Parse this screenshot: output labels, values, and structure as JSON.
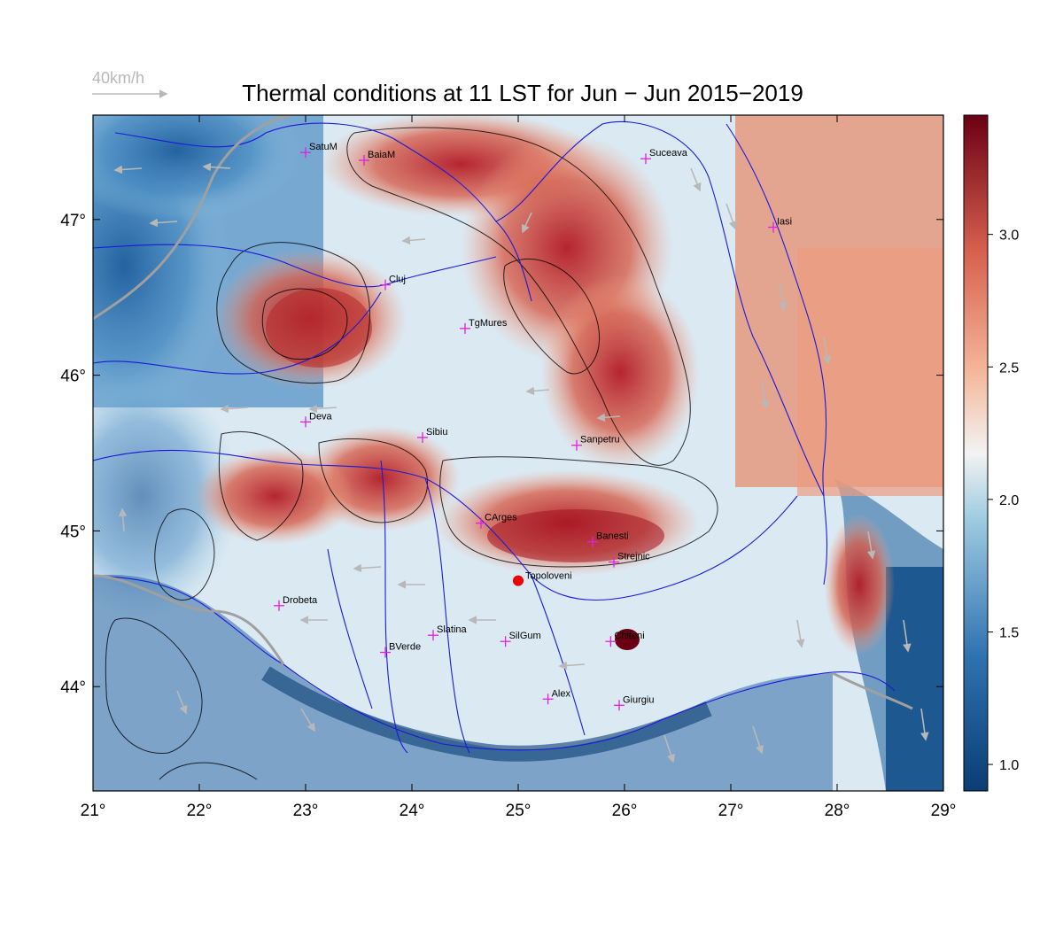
{
  "title": "Thermal conditions at 11 LST for Jun − Jun  2015−2019",
  "wind_scale": {
    "label": "40km/h",
    "color": "#b8b8b8"
  },
  "map": {
    "lon_range": [
      21,
      29
    ],
    "lat_range": [
      43.33,
      47.67
    ],
    "lon_ticks": [
      {
        "value": 21,
        "label": "21°"
      },
      {
        "value": 22,
        "label": "22°"
      },
      {
        "value": 23,
        "label": "23°"
      },
      {
        "value": 24,
        "label": "24°"
      },
      {
        "value": 25,
        "label": "25°"
      },
      {
        "value": 26,
        "label": "26°"
      },
      {
        "value": 27,
        "label": "27°"
      },
      {
        "value": 28,
        "label": "28°"
      },
      {
        "value": 29,
        "label": "29°"
      }
    ],
    "lat_ticks": [
      {
        "value": 44,
        "label": "44°"
      },
      {
        "value": 45,
        "label": "45°"
      },
      {
        "value": 46,
        "label": "46°"
      },
      {
        "value": 47,
        "label": "47°"
      }
    ],
    "colors": {
      "low": "#0a3d73",
      "mid": "#f3f3f3",
      "high": "#7a0518",
      "rivers": "#1a1adb",
      "border": "#a0a0a0",
      "city_marker": "#e020e0",
      "highlight": "#ee0000"
    }
  },
  "colorbar": {
    "range": [
      0.9,
      3.45
    ],
    "ticks": [
      {
        "value": 1.0,
        "label": "1.0"
      },
      {
        "value": 1.5,
        "label": "1.5"
      },
      {
        "value": 2.0,
        "label": "2.0"
      },
      {
        "value": 2.5,
        "label": "2.5"
      },
      {
        "value": 3.0,
        "label": "3.0"
      }
    ]
  },
  "cities": [
    {
      "name": "SatuM",
      "lon": 23.0,
      "lat": 47.43
    },
    {
      "name": "BaiaM",
      "lon": 23.55,
      "lat": 47.38
    },
    {
      "name": "Suceava",
      "lon": 26.2,
      "lat": 47.39
    },
    {
      "name": "Iasi",
      "lon": 27.4,
      "lat": 46.95
    },
    {
      "name": "Cluj",
      "lon": 23.75,
      "lat": 46.58
    },
    {
      "name": "TgMures",
      "lon": 24.5,
      "lat": 46.3
    },
    {
      "name": "Deva",
      "lon": 23.0,
      "lat": 45.7
    },
    {
      "name": "Sibiu",
      "lon": 24.1,
      "lat": 45.6
    },
    {
      "name": "Sanpetru",
      "lon": 25.55,
      "lat": 45.55
    },
    {
      "name": "CArges",
      "lon": 24.65,
      "lat": 45.05
    },
    {
      "name": "Banesti",
      "lon": 25.7,
      "lat": 44.93
    },
    {
      "name": "Strejnic",
      "lon": 25.9,
      "lat": 44.8
    },
    {
      "name": "Drobeta",
      "lon": 22.75,
      "lat": 44.52
    },
    {
      "name": "Slatina",
      "lon": 24.2,
      "lat": 44.33
    },
    {
      "name": "SilGum",
      "lon": 24.88,
      "lat": 44.29
    },
    {
      "name": "Chiteni",
      "lon": 25.87,
      "lat": 44.29
    },
    {
      "name": "BVerde",
      "lon": 23.75,
      "lat": 44.22
    },
    {
      "name": "Alex",
      "lon": 25.28,
      "lat": 43.92
    },
    {
      "name": "Giurgiu",
      "lon": 25.95,
      "lat": 43.88
    }
  ],
  "highlight_site": {
    "name": "Topoloveni",
    "lon": 25.0,
    "lat": 44.68
  }
}
